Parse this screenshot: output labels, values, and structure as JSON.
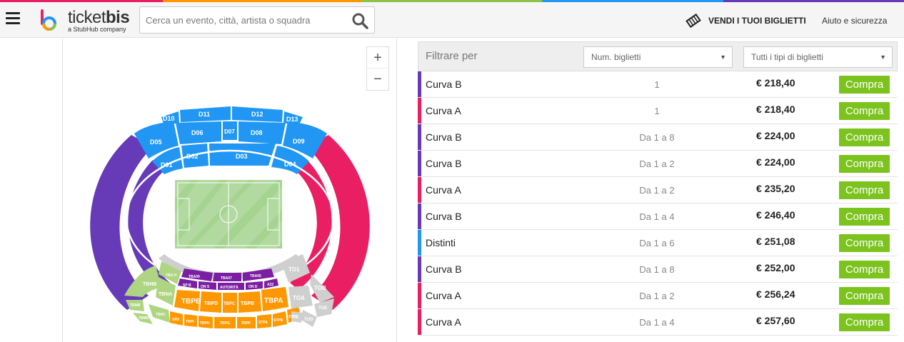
{
  "header": {
    "logo_text": "ticketbis",
    "logo_sub": "a StubHub company",
    "search_placeholder": "Cerca un evento, città, artista o squadra",
    "sell_label": "VENDI I TUOI BIGLIETTI",
    "help_label": "Aiuto e sicurezza"
  },
  "colors": {
    "curva_b": "#673ab7",
    "curva_a": "#e91e63",
    "distinti": "#2196f3",
    "tribuna_arancio": "#ff9800",
    "tribuna_verde": "#aed581",
    "grey": "#cfcfcf",
    "buy": "#7cc31e"
  },
  "map": {
    "zoom_in": "+",
    "zoom_out": "−",
    "sections": {
      "d10": "D10",
      "d11": "D11",
      "d12": "D12",
      "d13": "D13",
      "d05": "D05",
      "d06": "D06",
      "d07": "D07",
      "d08": "D08",
      "d09": "D09",
      "d01": "D01",
      "d02": "D02",
      "d03": "D03",
      "d04": "D04",
      "tba09": "TBA09",
      "tba07": "TBA07",
      "tba05": "TBA05",
      "spb": "SP B",
      "ons": "ON S",
      "autorita": "AUTORITÀ",
      "ond": "ON D",
      "a22": "A22",
      "tbah": "TBA H",
      "tbnb": "TBNB",
      "tbna": "TBNA",
      "tbmb": "TBMB",
      "tbmd": "TBMD",
      "tbnc": "TBNC",
      "srv": "SRV",
      "tbpe": "TBPE",
      "tbpd": "TBPD",
      "tbpc": "TBPC",
      "tbpb": "TBPB",
      "tbpa": "TBPA",
      "trpi": "TRPI",
      "trph": "TRPH",
      "trpg": "TRPG",
      "trpf": "TRPF",
      "stpa": "STPA",
      "stpb": "STPB",
      "stpc": "STPC",
      "to1": "TO1",
      "tob": "TOB",
      "toa": "TOA",
      "toe": "TOE",
      "tod": "TOD",
      "toc": "TOC"
    }
  },
  "filter": {
    "label": "Filtrare per",
    "num_tickets": "Num. biglietti",
    "ticket_types": "Tutti i tipi di biglietti"
  },
  "listings": [
    {
      "sector": "Curva B",
      "qty": "1",
      "price": "€ 218,40",
      "buy": "Compra",
      "color": "#673ab7"
    },
    {
      "sector": "Curva A",
      "qty": "1",
      "price": "€ 218,40",
      "buy": "Compra",
      "color": "#e91e63"
    },
    {
      "sector": "Curva B",
      "qty": "Da 1 a 8",
      "price": "€ 224,00",
      "buy": "Compra",
      "color": "#673ab7"
    },
    {
      "sector": "Curva B",
      "qty": "Da 1 a 2",
      "price": "€ 224,00",
      "buy": "Compra",
      "color": "#673ab7"
    },
    {
      "sector": "Curva A",
      "qty": "Da 1 a 2",
      "price": "€ 235,20",
      "buy": "Compra",
      "color": "#e91e63"
    },
    {
      "sector": "Curva B",
      "qty": "Da 1 a 4",
      "price": "€ 246,40",
      "buy": "Compra",
      "color": "#673ab7"
    },
    {
      "sector": "Distinti",
      "qty": "Da 1 a 6",
      "price": "€ 251,08",
      "buy": "Compra",
      "color": "#2196f3"
    },
    {
      "sector": "Curva B",
      "qty": "Da 1 a 8",
      "price": "€ 252,00",
      "buy": "Compra",
      "color": "#673ab7"
    },
    {
      "sector": "Curva A",
      "qty": "Da 1 a 2",
      "price": "€ 256,24",
      "buy": "Compra",
      "color": "#e91e63"
    },
    {
      "sector": "Curva A",
      "qty": "Da 1 a 4",
      "price": "€ 257,60",
      "buy": "Compra",
      "color": "#e91e63"
    }
  ]
}
